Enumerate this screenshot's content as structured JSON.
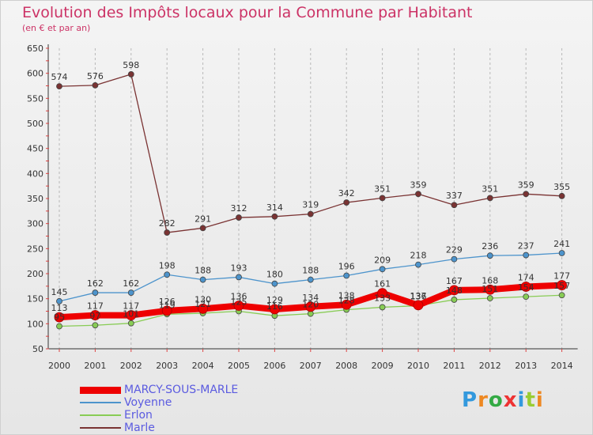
{
  "header": {
    "title": "Evolution des Impôts locaux pour la Commune par Habitant",
    "subtitle": "(en € et par an)"
  },
  "logo": {
    "text": "Proxiti"
  },
  "chart_data": {
    "type": "line",
    "title": "Evolution des Impôts locaux pour la Commune par Habitant",
    "subtitle": "(en € et par an)",
    "xlabel": "",
    "ylabel": "",
    "ylim": [
      50,
      650
    ],
    "yticks": [
      50,
      100,
      150,
      200,
      250,
      300,
      350,
      400,
      450,
      500,
      550,
      600,
      650
    ],
    "grid": "vertical dashed",
    "legend_position": "bottom-left",
    "categories": [
      "2000",
      "2001",
      "2002",
      "2003",
      "2004",
      "2005",
      "2006",
      "2007",
      "2008",
      "2009",
      "2010",
      "2011",
      "2012",
      "2013",
      "2014"
    ],
    "series": [
      {
        "name": "MARCY-SOUS-MARLE",
        "color": "#ee0000",
        "emphasis": true,
        "values": [
          113,
          117,
          117,
          126,
          130,
          136,
          129,
          134,
          138,
          161,
          137,
          167,
          168,
          174,
          177
        ]
      },
      {
        "name": "Voyenne",
        "color": "#4d94cc",
        "values": [
          145,
          162,
          162,
          198,
          188,
          193,
          180,
          188,
          196,
          209,
          218,
          229,
          236,
          237,
          241
        ]
      },
      {
        "name": "Erlon",
        "color": "#88cc55",
        "values": [
          95,
          97,
          101,
          119,
          121,
          125,
          116,
          120,
          128,
          133,
          136,
          148,
          151,
          154,
          157
        ]
      },
      {
        "name": "Marle",
        "color": "#7a3333",
        "values": [
          574,
          576,
          598,
          282,
          291,
          312,
          314,
          319,
          342,
          351,
          359,
          337,
          351,
          359,
          355
        ]
      }
    ]
  }
}
